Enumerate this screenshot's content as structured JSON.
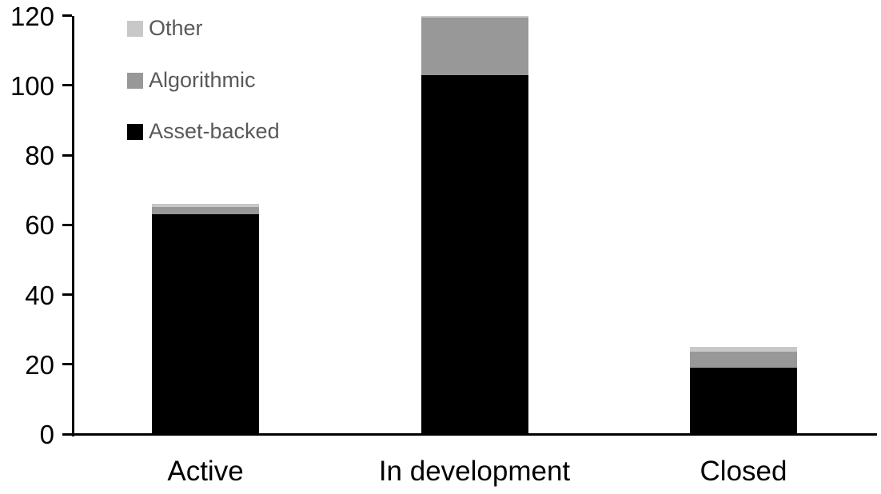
{
  "chart_data": {
    "type": "bar",
    "stacked": true,
    "title": "",
    "xlabel": "",
    "ylabel": "",
    "categories": [
      "Active",
      "In development",
      "Closed"
    ],
    "series": [
      {
        "name": "Asset-backed",
        "color": "#000000",
        "values": [
          63,
          103,
          19
        ]
      },
      {
        "name": "Algorithmic",
        "color": "#989898",
        "values": [
          2,
          16.5,
          4.5
        ]
      },
      {
        "name": "Other",
        "color": "#c8c8c8",
        "values": [
          1,
          0.5,
          1.5
        ]
      }
    ],
    "totals": [
      66,
      120,
      25
    ],
    "ylim": [
      0,
      120
    ],
    "yticks": [
      0,
      20,
      40,
      60,
      80,
      100,
      120
    ],
    "grid": false,
    "legend": {
      "position": "top-left-inside",
      "order_top_to_bottom": [
        "Other",
        "Algorithmic",
        "Asset-backed"
      ]
    }
  },
  "colors": {
    "background": "#ffffff",
    "axis": "#000000",
    "category_text": "#000000",
    "tick_text": "#000000",
    "legend_text": "#595959"
  }
}
